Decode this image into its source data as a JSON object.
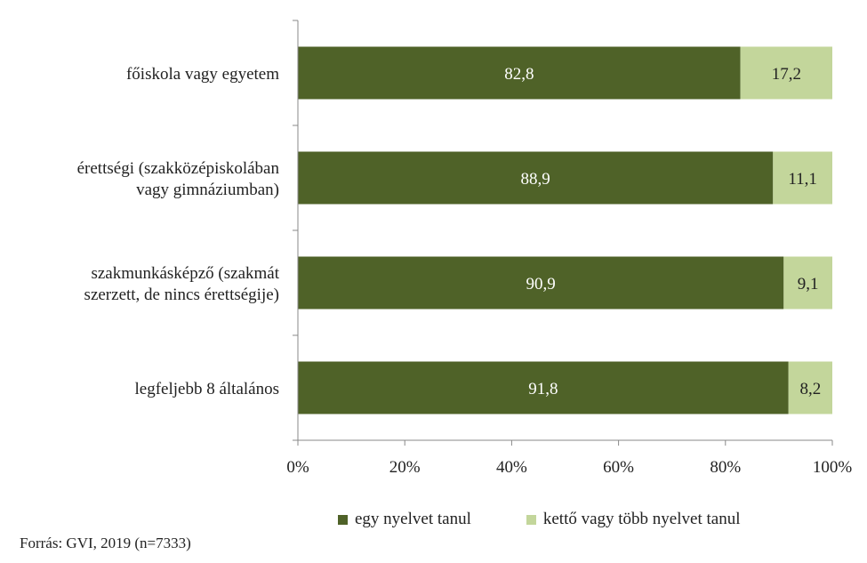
{
  "chart_data": {
    "type": "bar",
    "orientation": "horizontal",
    "stacked": true,
    "percent": true,
    "categories": [
      "főiskola vagy egyetem",
      "érettségi (szakközépiskolában vagy gimnáziumban)",
      "szakmunkásképző (szakmát szerzett, de nincs érettségije)",
      "legfeljebb 8 általános"
    ],
    "category_lines": [
      [
        "főiskola vagy egyetem"
      ],
      [
        "érettségi (szakközépiskolában",
        "vagy gimnáziumban)"
      ],
      [
        "szakmunkásképző (szakmát",
        "szerzett, de nincs érettségije)"
      ],
      [
        "legfeljebb 8 általános"
      ]
    ],
    "series": [
      {
        "name": "egy nyelvet tanul",
        "color": "#4f6228",
        "values": [
          82.8,
          88.9,
          90.9,
          91.8
        ],
        "labels": [
          "82,8",
          "88,9",
          "90,9",
          "91,8"
        ]
      },
      {
        "name": "kettő vagy több nyelvet tanul",
        "color": "#c3d69b",
        "values": [
          17.2,
          11.1,
          9.1,
          8.2
        ],
        "labels": [
          "17,2",
          "11,1",
          "9,1",
          "8,2"
        ]
      }
    ],
    "xlim": [
      0,
      100
    ],
    "x_ticks": [
      "0%",
      "20%",
      "40%",
      "60%",
      "80%",
      "100%"
    ],
    "grid": false,
    "legend": "bottom"
  },
  "source": "Forrás: GVI, 2019 (n=7333)"
}
